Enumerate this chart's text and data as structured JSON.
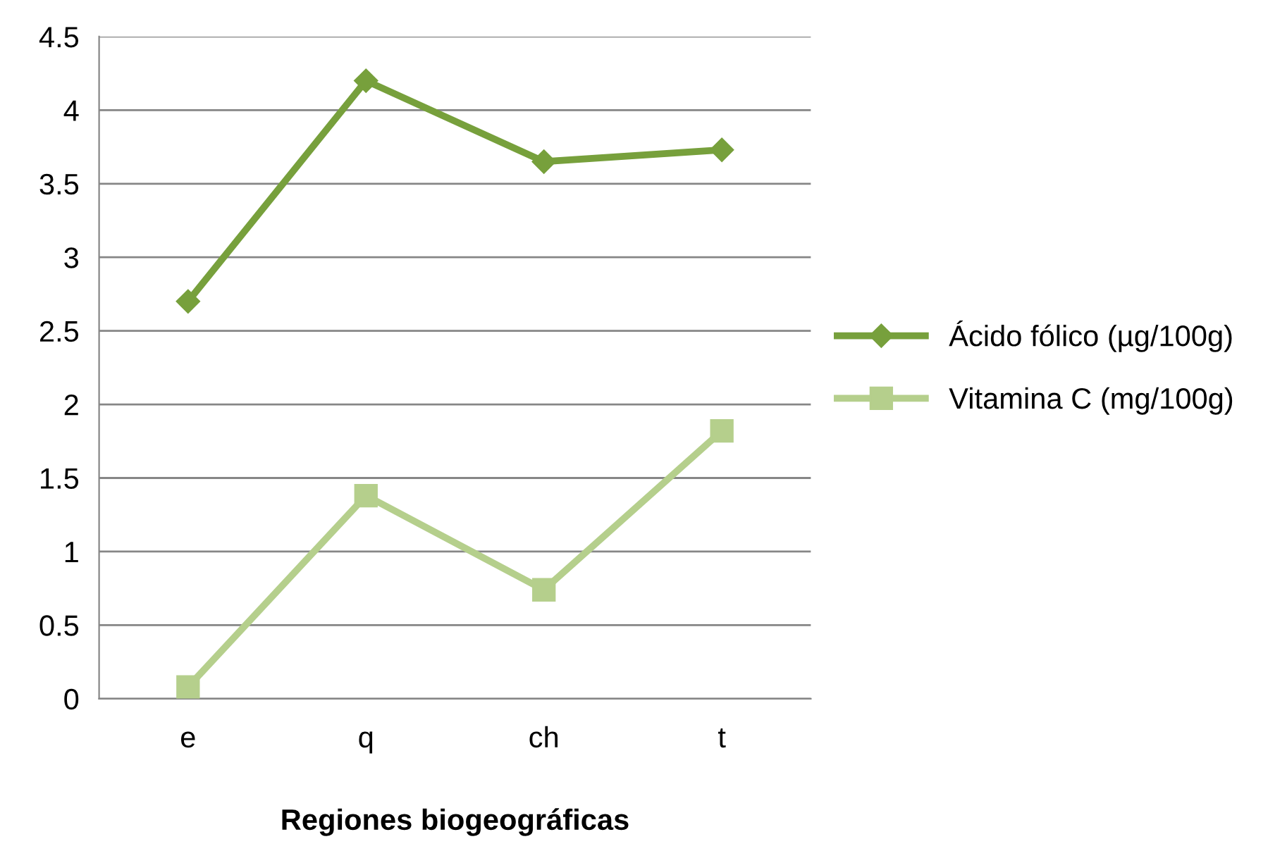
{
  "chart_data": {
    "type": "line",
    "xlabel": "Regiones biogeográficas",
    "categories": [
      "e",
      "q",
      "ch",
      "t"
    ],
    "series": [
      {
        "name": "Ácido fólico (µg/100g)",
        "color": "#77a03c",
        "values": [
          2.7,
          4.2,
          3.65,
          3.73
        ],
        "marker": "diamond"
      },
      {
        "name": "Vitamina C (mg/100g)",
        "color": "#b5cf8c",
        "values": [
          0.08,
          1.38,
          0.74,
          1.82
        ],
        "marker": "square"
      }
    ],
    "ylim": [
      0,
      4.5
    ],
    "yticks": [
      0,
      0.5,
      1,
      1.5,
      2,
      2.5,
      3,
      3.5,
      4,
      4.5
    ],
    "grid": "y",
    "legend": "right"
  }
}
